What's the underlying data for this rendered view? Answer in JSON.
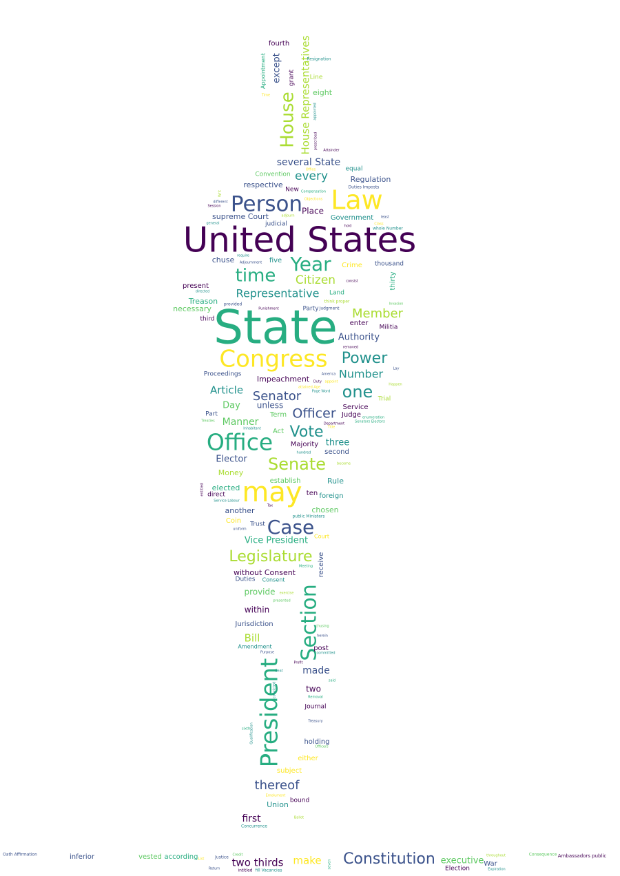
{
  "palette": {
    "background": "#ffffff",
    "colors": [
      "#440154",
      "#3b528b",
      "#21918c",
      "#27ad81",
      "#5ec962",
      "#aadc32",
      "#fde725"
    ]
  },
  "words": [
    {
      "text": "United States"
    },
    {
      "text": "State"
    },
    {
      "text": "Congress"
    },
    {
      "text": "may"
    },
    {
      "text": "Law"
    },
    {
      "text": "Person"
    },
    {
      "text": "Office"
    },
    {
      "text": "President"
    },
    {
      "text": "Section"
    },
    {
      "text": "Case"
    },
    {
      "text": "Constitution"
    },
    {
      "text": "Year"
    },
    {
      "text": "time"
    },
    {
      "text": "Senate"
    },
    {
      "text": "Legislature"
    },
    {
      "text": "House"
    },
    {
      "text": "House Representatives"
    },
    {
      "text": "Power"
    },
    {
      "text": "one"
    },
    {
      "text": "Vote"
    },
    {
      "text": "Officer"
    },
    {
      "text": "Senator"
    },
    {
      "text": "Member"
    },
    {
      "text": "Citizen"
    },
    {
      "text": "Representative"
    },
    {
      "text": "Number"
    },
    {
      "text": "thereof"
    },
    {
      "text": "Article"
    },
    {
      "text": "several State"
    },
    {
      "text": "every"
    },
    {
      "text": "Elector"
    },
    {
      "text": "Manner"
    },
    {
      "text": "Vice President"
    },
    {
      "text": "Bill"
    },
    {
      "text": "made"
    },
    {
      "text": "two thirds"
    },
    {
      "text": "make"
    },
    {
      "text": "executive"
    },
    {
      "text": "first"
    },
    {
      "text": "Authority"
    },
    {
      "text": "Impeachment"
    },
    {
      "text": "Day"
    },
    {
      "text": "three"
    },
    {
      "text": "within"
    },
    {
      "text": "except"
    },
    {
      "text": "provide"
    },
    {
      "text": "two"
    },
    {
      "text": "unless"
    },
    {
      "text": "Treason"
    },
    {
      "text": "necessary"
    },
    {
      "text": "Place"
    },
    {
      "text": "supreme Court"
    },
    {
      "text": "Government"
    },
    {
      "text": "Regulation"
    },
    {
      "text": "respective"
    },
    {
      "text": "Money"
    },
    {
      "text": "elected"
    },
    {
      "text": "chosen"
    },
    {
      "text": "another"
    },
    {
      "text": "Rule"
    },
    {
      "text": "without Consent"
    },
    {
      "text": "receive"
    },
    {
      "text": "Majority"
    },
    {
      "text": "second"
    },
    {
      "text": "Jurisdiction"
    },
    {
      "text": "Union"
    },
    {
      "text": "fourth"
    },
    {
      "text": "eight"
    },
    {
      "text": "Appointment"
    },
    {
      "text": "grant"
    },
    {
      "text": "Convention"
    },
    {
      "text": "New"
    },
    {
      "text": "judicial"
    },
    {
      "text": "chuse"
    },
    {
      "text": "five"
    },
    {
      "text": "Crime"
    },
    {
      "text": "thousand"
    },
    {
      "text": "thirty"
    },
    {
      "text": "present"
    },
    {
      "text": "third"
    },
    {
      "text": "Party"
    },
    {
      "text": "enter"
    },
    {
      "text": "Militia"
    },
    {
      "text": "Proceedings"
    },
    {
      "text": "Service"
    },
    {
      "text": "Judge"
    },
    {
      "text": "Term"
    },
    {
      "text": "Part"
    },
    {
      "text": "Act"
    },
    {
      "text": "Trial"
    },
    {
      "text": "establish"
    },
    {
      "text": "ten"
    },
    {
      "text": "foreign"
    },
    {
      "text": "direct"
    },
    {
      "text": "Coin"
    },
    {
      "text": "Trust"
    },
    {
      "text": "Court"
    },
    {
      "text": "Duties"
    },
    {
      "text": "Consent"
    },
    {
      "text": "Amendment"
    },
    {
      "text": "post"
    },
    {
      "text": "Journal"
    },
    {
      "text": "holding"
    },
    {
      "text": "either"
    },
    {
      "text": "subject"
    },
    {
      "text": "bound"
    },
    {
      "text": "Land"
    },
    {
      "text": "equal"
    },
    {
      "text": "Line"
    },
    {
      "text": "inferior"
    },
    {
      "text": "vested"
    },
    {
      "text": "according"
    },
    {
      "text": "War"
    },
    {
      "text": "Election"
    },
    {
      "text": "Ambassadors public"
    },
    {
      "text": "Oath Affirmation"
    },
    {
      "text": "Resignation"
    },
    {
      "text": "Compensation"
    },
    {
      "text": "Objections"
    },
    {
      "text": "Duties Imposts"
    },
    {
      "text": "Session"
    },
    {
      "text": "different"
    },
    {
      "text": "general"
    },
    {
      "text": "adjourn"
    },
    {
      "text": "hold"
    },
    {
      "text": "least"
    },
    {
      "text": "whole Number"
    },
    {
      "text": "Class"
    },
    {
      "text": "require"
    },
    {
      "text": "Adjournment"
    },
    {
      "text": "consist"
    },
    {
      "text": "directed"
    },
    {
      "text": "provided"
    },
    {
      "text": "Punishment"
    },
    {
      "text": "Judgment"
    },
    {
      "text": "think proper"
    },
    {
      "text": "Invasion"
    },
    {
      "text": "removed"
    },
    {
      "text": "America"
    },
    {
      "text": "Duty"
    },
    {
      "text": "appoint"
    },
    {
      "text": "Page Word"
    },
    {
      "text": "attained Age"
    },
    {
      "text": "Happen"
    },
    {
      "text": "Lay"
    },
    {
      "text": "Treaties"
    },
    {
      "text": "Inhabitant"
    },
    {
      "text": "Department"
    },
    {
      "text": "enumeration"
    },
    {
      "text": "Senators Electors"
    },
    {
      "text": "hundred"
    },
    {
      "text": "become"
    },
    {
      "text": "entitled"
    },
    {
      "text": "Service Labour"
    },
    {
      "text": "Tax"
    },
    {
      "text": "public Ministers"
    },
    {
      "text": "uniform"
    },
    {
      "text": "Meeting"
    },
    {
      "text": "exercise"
    },
    {
      "text": "presented"
    },
    {
      "text": "Purpose"
    },
    {
      "text": "committed"
    },
    {
      "text": "Profit"
    },
    {
      "text": "Seat"
    },
    {
      "text": "said"
    },
    {
      "text": "Removal"
    },
    {
      "text": "Treasury"
    },
    {
      "text": "Qualification"
    },
    {
      "text": "sixth"
    },
    {
      "text": "Emolument"
    },
    {
      "text": "Ballot"
    },
    {
      "text": "Concurrence"
    },
    {
      "text": "List"
    },
    {
      "text": "Justice"
    },
    {
      "text": "Credit"
    },
    {
      "text": "Return"
    },
    {
      "text": "intitled"
    },
    {
      "text": "fill Vacancies"
    },
    {
      "text": "seven"
    },
    {
      "text": "throughout"
    },
    {
      "text": "Expiration"
    },
    {
      "text": "Consequence"
    },
    {
      "text": "Attainder"
    },
    {
      "text": "prescribed"
    },
    {
      "text": "appointed"
    },
    {
      "text": "Office"
    },
    {
      "text": "convicted"
    },
    {
      "text": "Title"
    },
    {
      "text": "chusing"
    },
    {
      "text": "herein"
    },
    {
      "text": "Officers"
    },
    {
      "text": "Writ"
    },
    {
      "text": "Time"
    }
  ]
}
